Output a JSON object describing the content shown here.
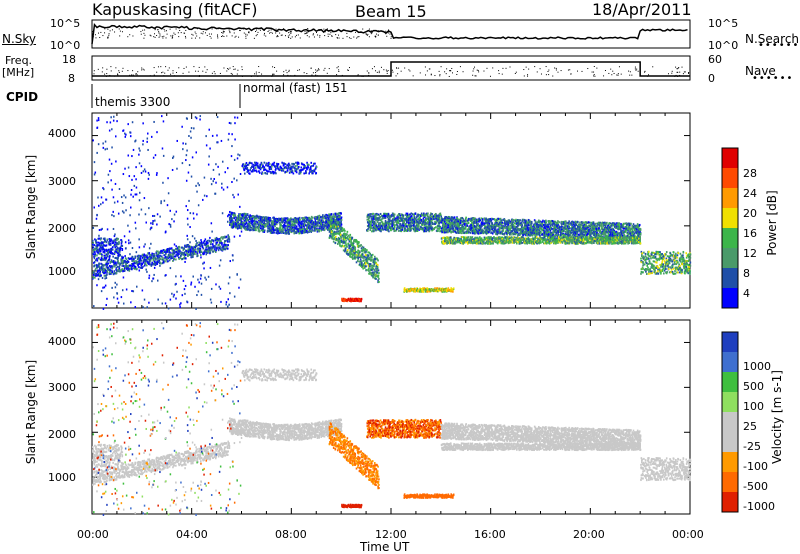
{
  "header": {
    "station": "Kapuskasing (fitACF)",
    "beam": "Beam 15",
    "date": "18/Apr/2011"
  },
  "top_panel": {
    "left_label": "N.Sky",
    "left_ticks": [
      "10^5",
      "10^0"
    ],
    "right_label": "N.Search",
    "right_ticks": [
      "10^5",
      "10^0"
    ]
  },
  "freq_panel": {
    "left_label_1": "Freq.",
    "left_label_2": "[MHz]",
    "left_ticks": [
      "18",
      "8"
    ],
    "right_label": "Nave",
    "right_ticks": [
      "60",
      "0"
    ]
  },
  "cpid": {
    "label": "CPID",
    "modes": [
      "themis 3300",
      "normal (fast) 151"
    ]
  },
  "colors": {
    "power": [
      "#0000ff",
      "#1f4fa8",
      "#4a9a6a",
      "#3cb54a",
      "#f0e000",
      "#ff9a00",
      "#ff4a00",
      "#e00000"
    ],
    "velocity": [
      "#1f3fbf",
      "#3f6fcf",
      "#3fbf3f",
      "#8fdf5f",
      "#c8c8c8",
      "#c8c8c8",
      "#ff9a00",
      "#ff6a00",
      "#e02000"
    ]
  },
  "chart_data": [
    {
      "type": "heatmap",
      "title": "Power",
      "ylabel": "Slant Range [km]",
      "ylim": [
        180,
        4500
      ],
      "xlim": [
        "00:00",
        "24:00"
      ],
      "yticks": [
        "1000",
        "2000",
        "3000",
        "4000"
      ],
      "colorbar": {
        "label": "Power [dB]",
        "ticks": [
          "4",
          "8",
          "12",
          "16",
          "20",
          "24",
          "28"
        ],
        "range": [
          0,
          30
        ]
      }
    },
    {
      "type": "heatmap",
      "title": "Velocity",
      "ylabel": "Slant Range [km]",
      "xlabel": "Time UT",
      "xticks": [
        "00:00",
        "04:00",
        "08:00",
        "12:00",
        "16:00",
        "20:00",
        "00:00"
      ],
      "yticks": [
        "1000",
        "2000",
        "3000",
        "4000"
      ],
      "colorbar": {
        "label": "Velocity [m s-1]",
        "ticks": [
          "1000",
          "500",
          "100",
          "25",
          "-25",
          "-100",
          "-500",
          "-1000"
        ]
      }
    }
  ]
}
